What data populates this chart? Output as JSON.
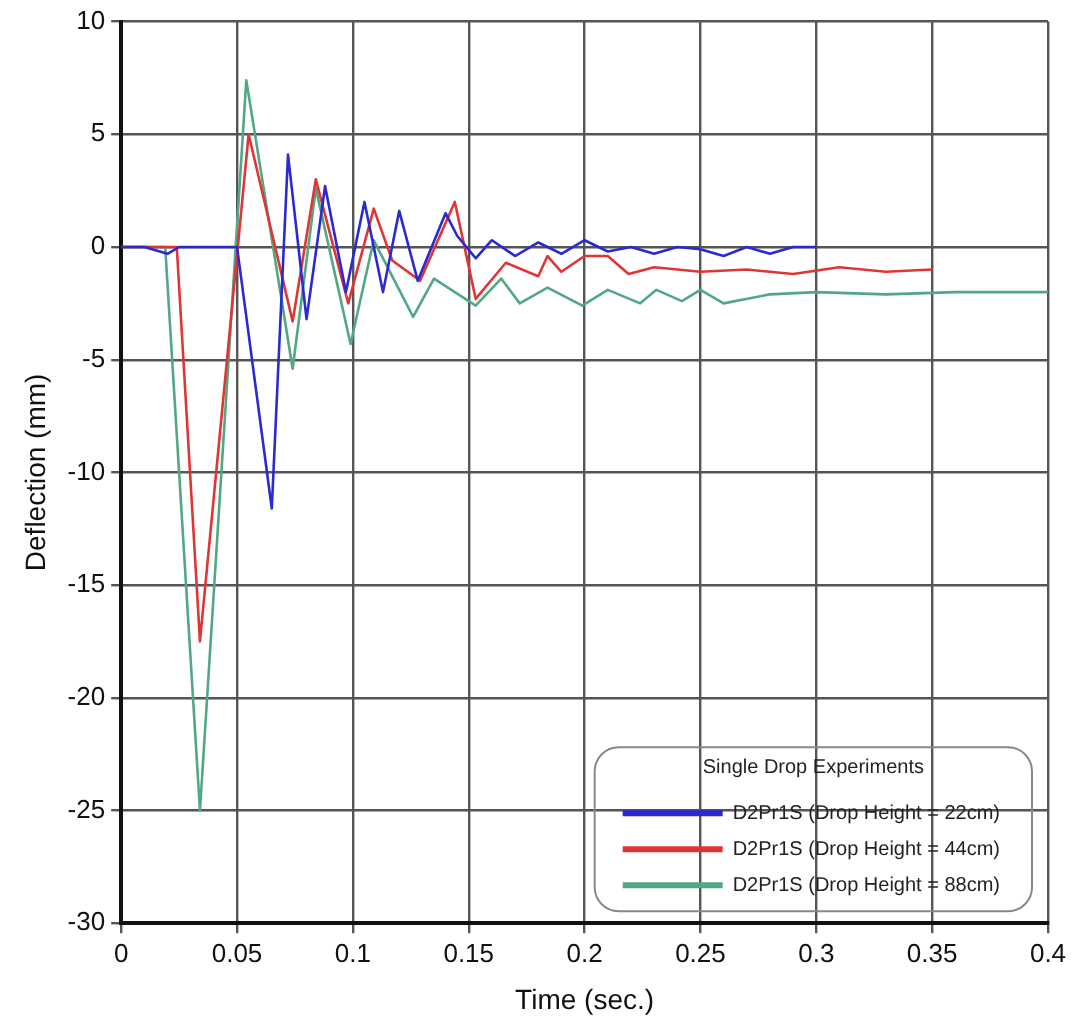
{
  "chart_data": {
    "type": "line",
    "xlabel": "Time (sec.)",
    "ylabel": "Deflection (mm)",
    "legend_title": "Single Drop Experiments",
    "legend": "bottom right",
    "grid": true,
    "marker": "none",
    "line_style": "solid",
    "xlim": [
      0,
      0.4
    ],
    "xticks": [
      0,
      0.05,
      0.1,
      0.15,
      0.2,
      0.25,
      0.3,
      0.35,
      0.4
    ],
    "ylim": [
      -30,
      10
    ],
    "yticks": [
      -30,
      -25,
      -20,
      -15,
      -10,
      -5,
      0,
      5,
      10
    ],
    "series": [
      {
        "name": "D2Pr1S (Drop Height = 22cm)",
        "color": "#2a2ad0",
        "x": [
          0,
          0.01,
          0.02,
          0.025,
          0.04,
          0.05,
          0.065,
          0.072,
          0.08,
          0.088,
          0.097,
          0.105,
          0.113,
          0.12,
          0.128,
          0.14,
          0.145,
          0.153,
          0.16,
          0.17,
          0.18,
          0.19,
          0.2,
          0.21,
          0.22,
          0.23,
          0.24,
          0.25,
          0.26,
          0.27,
          0.28,
          0.29,
          0.3
        ],
        "values": [
          0,
          0,
          -0.3,
          0,
          0,
          0,
          -11.6,
          4.1,
          -3.2,
          2.7,
          -2.0,
          2.0,
          -2.0,
          1.6,
          -1.5,
          1.5,
          0.5,
          -0.5,
          0.3,
          -0.4,
          0.2,
          -0.3,
          0.3,
          -0.2,
          0,
          -0.3,
          0,
          -0.1,
          -0.4,
          0,
          -0.3,
          0,
          0
        ]
      },
      {
        "name": "D2Pr1S (Drop Height = 44cm)",
        "color": "#e03535",
        "x": [
          0,
          0.024,
          0.034,
          0.055,
          0.074,
          0.084,
          0.098,
          0.109,
          0.117,
          0.129,
          0.144,
          0.153,
          0.166,
          0.18,
          0.184,
          0.19,
          0.2,
          0.21,
          0.219,
          0.23,
          0.25,
          0.27,
          0.29,
          0.31,
          0.33,
          0.35
        ],
        "values": [
          0,
          0,
          -17.5,
          5.0,
          -3.3,
          3.0,
          -2.5,
          1.7,
          -0.6,
          -1.5,
          2.0,
          -2.3,
          -0.7,
          -1.3,
          -0.4,
          -1.1,
          -0.4,
          -0.4,
          -1.2,
          -0.9,
          -1.1,
          -1.0,
          -1.2,
          -0.9,
          -1.1,
          -1.0
        ]
      },
      {
        "name": "D2Pr1S (Drop Height = 88cm)",
        "color": "#52a882",
        "x": [
          0,
          0.019,
          0.034,
          0.054,
          0.074,
          0.084,
          0.099,
          0.109,
          0.126,
          0.135,
          0.153,
          0.164,
          0.172,
          0.184,
          0.199,
          0.21,
          0.224,
          0.231,
          0.242,
          0.25,
          0.26,
          0.28,
          0.3,
          0.33,
          0.36,
          0.4
        ],
        "values": [
          0,
          0,
          -25,
          7.4,
          -5.4,
          2.6,
          -4.3,
          0.3,
          -3.1,
          -1.4,
          -2.6,
          -1.4,
          -2.5,
          -1.8,
          -2.6,
          -1.9,
          -2.5,
          -1.9,
          -2.4,
          -1.9,
          -2.5,
          -2.1,
          -2.0,
          -2.1,
          -2.0,
          -2.0
        ]
      }
    ]
  }
}
